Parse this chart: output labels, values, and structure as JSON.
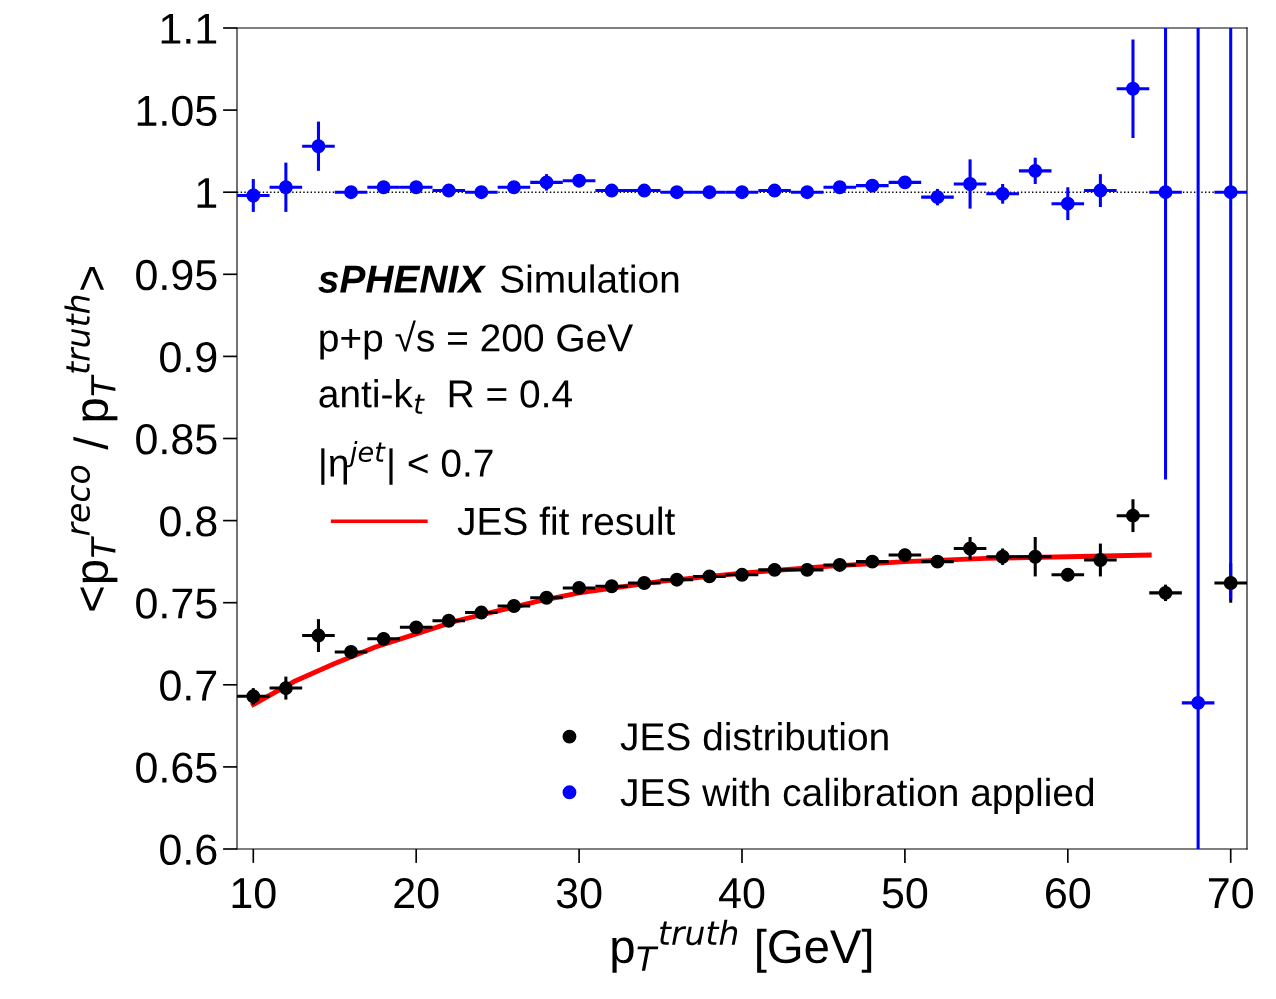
{
  "chart_data": {
    "type": "scatter",
    "xlabel": "p$_{T}$$^{truth}$ [GeV]",
    "ylabel": "<p$_{T}$$^{reco}$ / p$_{T}$$^{truth}$>",
    "x": [
      10,
      12,
      14,
      16,
      18,
      20,
      22,
      24,
      26,
      28,
      30,
      32,
      34,
      36,
      38,
      40,
      42,
      44,
      46,
      48,
      50,
      52,
      54,
      56,
      58,
      60,
      62,
      64,
      66,
      68,
      70
    ],
    "series": [
      {
        "name": "JES distribution",
        "type": "scatter",
        "color": "#000000",
        "values": [
          0.693,
          0.698,
          0.73,
          0.72,
          0.728,
          0.735,
          0.739,
          0.744,
          0.748,
          0.753,
          0.759,
          0.76,
          0.762,
          0.764,
          0.766,
          0.767,
          0.77,
          0.77,
          0.773,
          0.775,
          0.779,
          0.775,
          0.783,
          0.778,
          0.778,
          0.767,
          0.776,
          0.803,
          0.756,
          null,
          0.762
        ],
        "errors": [
          0.005,
          0.007,
          0.01,
          0.003,
          0.003,
          0.003,
          0.003,
          0.003,
          0.003,
          0.003,
          0.003,
          0.003,
          0.003,
          0.003,
          0.003,
          0.003,
          0.003,
          0.003,
          0.003,
          0.003,
          0.003,
          0.003,
          0.007,
          0.005,
          0.012,
          0.004,
          0.01,
          0.01,
          0.005,
          null,
          0.012
        ],
        "xerrors": [
          1,
          1,
          1,
          1,
          1,
          1,
          1,
          1,
          1,
          1,
          1,
          1,
          1,
          1,
          1,
          1,
          1,
          1,
          1,
          1,
          1,
          1,
          1,
          1,
          1,
          1,
          1,
          1,
          1,
          null,
          1
        ]
      },
      {
        "name": "JES with calibration applied",
        "type": "scatter",
        "color": "#0000ff",
        "values": [
          0.998,
          1.003,
          1.028,
          1.0,
          1.003,
          1.003,
          1.001,
          1.0,
          1.003,
          1.006,
          1.007,
          1.001,
          1.001,
          1.0,
          1.0,
          1.0,
          1.001,
          1.0,
          1.003,
          1.004,
          1.006,
          0.997,
          1.005,
          0.999,
          1.013,
          0.993,
          1.001,
          1.063,
          1.0,
          0.689,
          1.0
        ],
        "errors": [
          0.01,
          0.015,
          0.015,
          0.003,
          0.003,
          0.003,
          0.003,
          0.003,
          0.003,
          0.005,
          0.004,
          0.003,
          0.003,
          0.003,
          0.003,
          0.003,
          0.003,
          0.003,
          0.003,
          0.003,
          0.003,
          0.005,
          0.015,
          0.006,
          0.008,
          0.01,
          0.01,
          0.03,
          [
            0.825,
            1.1
          ],
          [
            0.6,
            1.1
          ],
          [
            0.752,
            1.1
          ]
        ],
        "xerrors": [
          1,
          1,
          1,
          1,
          1,
          1,
          1,
          1,
          1,
          1,
          1,
          1,
          1,
          1,
          1,
          1,
          1,
          1,
          1,
          1,
          1,
          1,
          1,
          1,
          1,
          1,
          1,
          1,
          1,
          1,
          1
        ]
      },
      {
        "name": "JES fit result",
        "type": "line",
        "marker": "none",
        "color": "#ff0000",
        "x": [
          10,
          12.5,
          15,
          17.5,
          20,
          22.5,
          25,
          27.5,
          30,
          35,
          40,
          45,
          50,
          55,
          60,
          65
        ],
        "values": [
          0.688,
          0.702,
          0.713,
          0.723,
          0.731,
          0.739,
          0.745,
          0.751,
          0.756,
          0.763,
          0.768,
          0.772,
          0.775,
          0.777,
          0.778,
          0.779
        ]
      }
    ],
    "xlim": [
      9,
      71
    ],
    "xticks": [
      10,
      20,
      30,
      40,
      50,
      60,
      70
    ],
    "ylim": [
      0.6,
      1.1
    ],
    "yticks": [
      0.6,
      0.65,
      0.7,
      0.75,
      0.8,
      0.85,
      0.9,
      0.95,
      1,
      1.05,
      1.1
    ],
    "ref_lines": [
      {
        "axis": "y",
        "value": 1,
        "color": "#000000",
        "line_style": "dotted"
      }
    ],
    "annotations": [
      "sPHENIX Simulation",
      "p+p √s = 200 GeV",
      "anti-k$_{t}$  R = 0.4",
      "|η$^{jet}$| < 0.7"
    ],
    "marker": "circle",
    "grid": false,
    "legend": "bottom"
  }
}
